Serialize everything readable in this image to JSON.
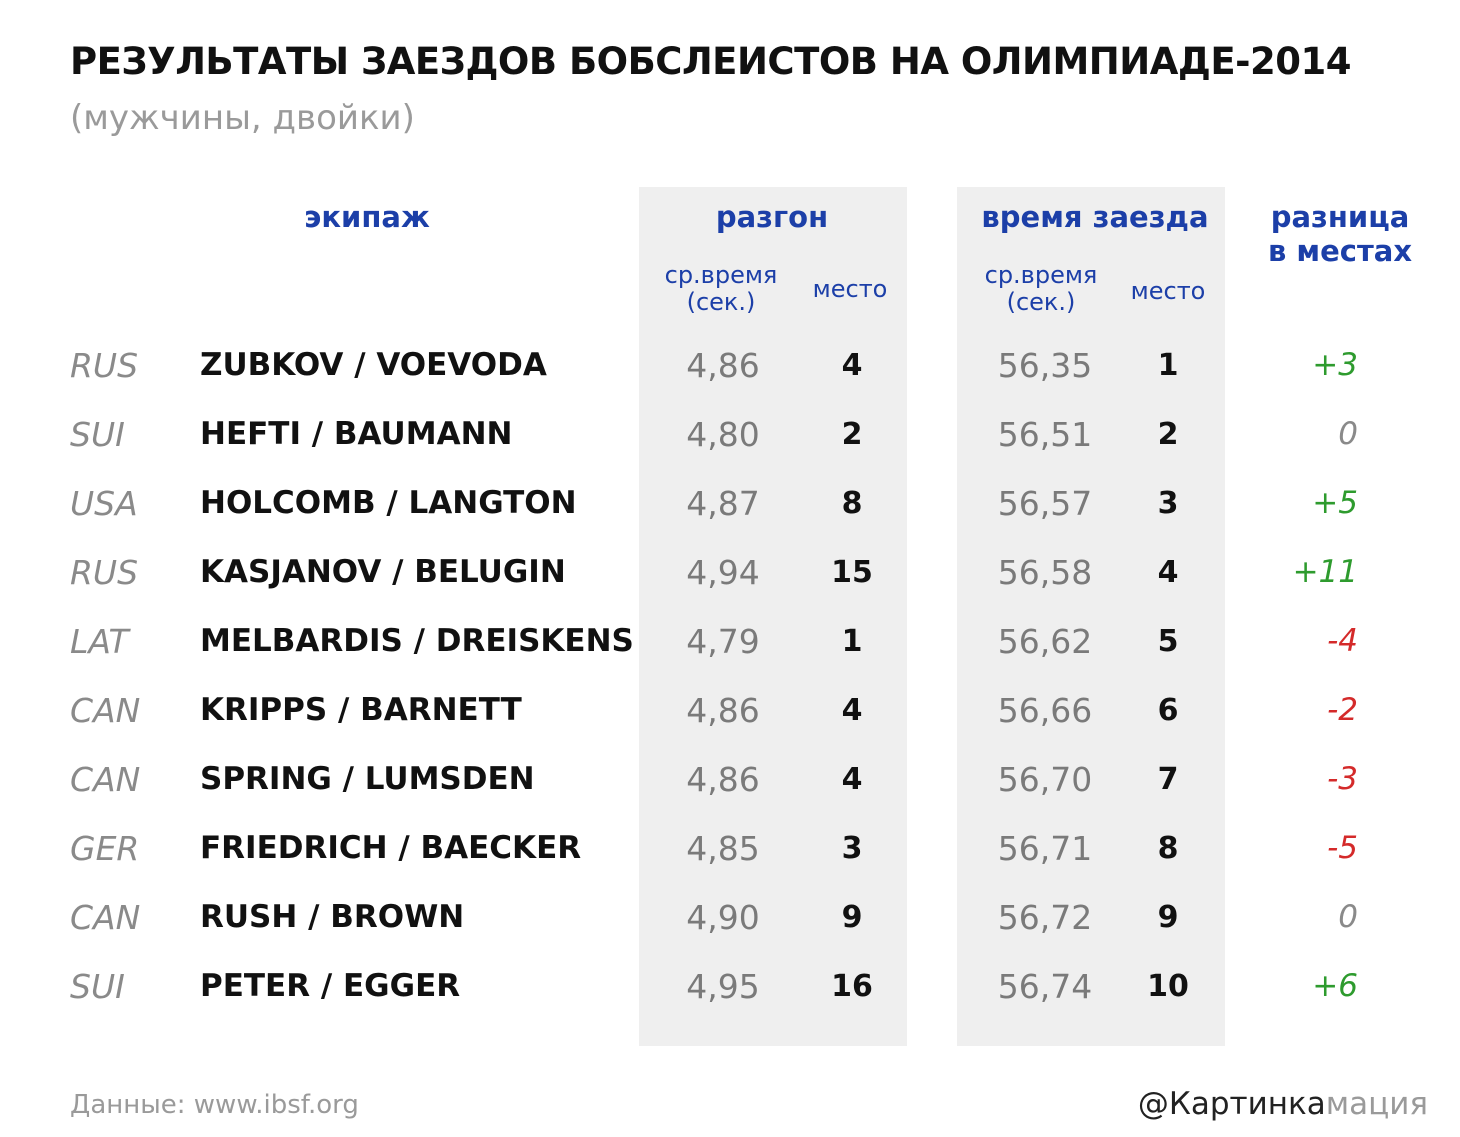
{
  "header": {
    "title": "РЕЗУЛЬТАТЫ ЗАЕЗДОВ БОБСЛЕИСТОВ НА ОЛИМПИАДЕ-2014",
    "subtitle": "(мужчины, двойки)"
  },
  "columns": {
    "crew": "экипаж",
    "start": "разгон",
    "run": "время заезда",
    "diff_line1": "разница",
    "diff_line2": "в местах",
    "avg_time_line1": "ср.время",
    "avg_time_line2": "(сек.)",
    "place": "место"
  },
  "colors": {
    "header_blue": "#1c3fa8",
    "positive": "#2e9b2e",
    "negative": "#d42a2a",
    "zero": "#8a8a8a",
    "band": "#efefef"
  },
  "chart_data": {
    "type": "table",
    "title": "РЕЗУЛЬТАТЫ ЗАЕЗДОВ БОБСЛЕИСТОВ НА ОЛИМПИАДЕ-2014",
    "subtitle": "(мужчины, двойки)",
    "rows": [
      {
        "country": "RUS",
        "crew": "ZUBKOV / VOEVODA",
        "start_time": "4,86",
        "start_place": "4",
        "run_time": "56,35",
        "run_place": "1",
        "diff": "+3",
        "sign": "positive"
      },
      {
        "country": "SUI",
        "crew": "HEFTI / BAUMANN",
        "start_time": "4,80",
        "start_place": "2",
        "run_time": "56,51",
        "run_place": "2",
        "diff": "0",
        "sign": "zero"
      },
      {
        "country": "USA",
        "crew": "HOLCOMB / LANGTON",
        "start_time": "4,87",
        "start_place": "8",
        "run_time": "56,57",
        "run_place": "3",
        "diff": "+5",
        "sign": "positive"
      },
      {
        "country": "RUS",
        "crew": "KASJANOV / BELUGIN",
        "start_time": "4,94",
        "start_place": "15",
        "run_time": "56,58",
        "run_place": "4",
        "diff": "+11",
        "sign": "positive"
      },
      {
        "country": "LAT",
        "crew": "MELBARDIS / DREISKENS",
        "start_time": "4,79",
        "start_place": "1",
        "run_time": "56,62",
        "run_place": "5",
        "diff": "-4",
        "sign": "negative"
      },
      {
        "country": "CAN",
        "crew": "KRIPPS / BARNETT",
        "start_time": "4,86",
        "start_place": "4",
        "run_time": "56,66",
        "run_place": "6",
        "diff": "-2",
        "sign": "negative"
      },
      {
        "country": "CAN",
        "crew": "SPRING / LUMSDEN",
        "start_time": "4,86",
        "start_place": "4",
        "run_time": "56,70",
        "run_place": "7",
        "diff": "-3",
        "sign": "negative"
      },
      {
        "country": "GER",
        "crew": "FRIEDRICH / BAECKER",
        "start_time": "4,85",
        "start_place": "3",
        "run_time": "56,71",
        "run_place": "8",
        "diff": "-5",
        "sign": "negative"
      },
      {
        "country": "CAN",
        "crew": "RUSH / BROWN",
        "start_time": "4,90",
        "start_place": "9",
        "run_time": "56,72",
        "run_place": "9",
        "diff": "0",
        "sign": "zero"
      },
      {
        "country": "SUI",
        "crew": "PETER / EGGER",
        "start_time": "4,95",
        "start_place": "16",
        "run_time": "56,74",
        "run_place": "10",
        "diff": "+6",
        "sign": "positive"
      }
    ]
  },
  "footer": {
    "source": "Данные: www.ibsf.org",
    "brand_main": "@Картинка",
    "brand_accent": "мация"
  }
}
